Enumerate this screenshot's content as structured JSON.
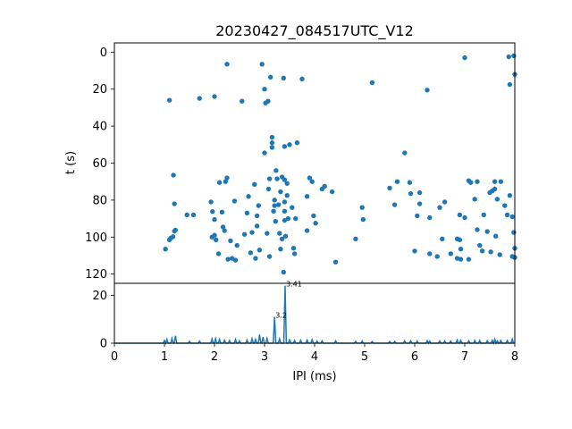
{
  "colors": {
    "series": "#1f77b4",
    "axes": "#000000",
    "background": "#ffffff"
  },
  "chart_data": [
    {
      "type": "scatter",
      "title": "20230427_084517UTC_V12",
      "xlabel": "",
      "ylabel": "t (s)",
      "xlim": [
        0,
        8
      ],
      "ylim": [
        125,
        -5
      ],
      "y_inverted": true,
      "yticks": [
        0,
        20,
        40,
        60,
        80,
        100,
        120
      ],
      "x_shared_with_next": true,
      "points": [
        [
          1.02,
          106.5
        ],
        [
          1.1,
          101.5
        ],
        [
          1.13,
          100.5
        ],
        [
          1.17,
          99.8
        ],
        [
          1.2,
          96.8
        ],
        [
          1.22,
          96.2
        ],
        [
          1.1,
          26
        ],
        [
          1.18,
          66.5
        ],
        [
          1.2,
          82
        ],
        [
          1.45,
          88
        ],
        [
          1.58,
          88
        ],
        [
          1.7,
          25
        ],
        [
          2.0,
          24
        ],
        [
          2.25,
          6.5
        ],
        [
          1.93,
          81
        ],
        [
          1.96,
          86.2
        ],
        [
          1.95,
          100
        ],
        [
          2.0,
          99
        ],
        [
          2.03,
          101.5
        ],
        [
          2.0,
          90.5
        ],
        [
          2.1,
          70.5
        ],
        [
          2.15,
          86.5
        ],
        [
          2.17,
          94.5
        ],
        [
          2.2,
          96.5
        ],
        [
          2.22,
          70
        ],
        [
          2.25,
          68
        ],
        [
          2.27,
          112
        ],
        [
          2.32,
          102
        ],
        [
          2.35,
          111.5
        ],
        [
          2.4,
          80.5
        ],
        [
          2.42,
          112.5
        ],
        [
          2.45,
          104.5
        ],
        [
          2.08,
          109
        ],
        [
          2.55,
          26.5
        ],
        [
          2.6,
          98.5
        ],
        [
          2.65,
          87
        ],
        [
          2.68,
          78
        ],
        [
          2.72,
          108.5
        ],
        [
          2.75,
          97.5
        ],
        [
          2.82,
          111.5
        ],
        [
          2.85,
          94
        ],
        [
          2.8,
          71.5
        ],
        [
          2.85,
          88.5
        ],
        [
          2.88,
          83
        ],
        [
          2.9,
          107
        ],
        [
          2.95,
          6.5
        ],
        [
          3.0,
          20
        ],
        [
          3.02,
          27.5
        ],
        [
          3.07,
          26.5
        ],
        [
          3.0,
          54.5
        ],
        [
          3.05,
          98
        ],
        [
          3.08,
          74
        ],
        [
          3.1,
          68.5
        ],
        [
          3.1,
          110.5
        ],
        [
          3.12,
          13.5
        ],
        [
          3.15,
          46
        ],
        [
          3.15,
          49
        ],
        [
          3.15,
          51.5
        ],
        [
          3.18,
          86
        ],
        [
          3.2,
          80
        ],
        [
          3.2,
          83
        ],
        [
          3.22,
          91.5
        ],
        [
          3.23,
          64
        ],
        [
          3.25,
          68.5
        ],
        [
          3.28,
          82.5
        ],
        [
          3.3,
          98
        ],
        [
          3.32,
          75.5
        ],
        [
          3.32,
          106.5
        ],
        [
          3.35,
          101
        ],
        [
          3.35,
          67.5
        ],
        [
          3.38,
          14
        ],
        [
          3.38,
          119
        ],
        [
          3.4,
          51
        ],
        [
          3.4,
          69
        ],
        [
          3.4,
          81
        ],
        [
          3.4,
          86
        ],
        [
          3.4,
          91
        ],
        [
          3.42,
          99.5
        ],
        [
          3.45,
          71
        ],
        [
          3.45,
          77.5
        ],
        [
          3.47,
          90
        ],
        [
          3.5,
          50
        ],
        [
          3.55,
          84
        ],
        [
          3.58,
          106
        ],
        [
          3.6,
          109
        ],
        [
          3.62,
          90
        ],
        [
          3.65,
          49
        ],
        [
          3.75,
          14.5
        ],
        [
          3.85,
          78
        ],
        [
          3.85,
          96.5
        ],
        [
          3.9,
          68
        ],
        [
          3.95,
          70
        ],
        [
          3.98,
          88.5
        ],
        [
          4.02,
          92.5
        ],
        [
          4.15,
          74
        ],
        [
          4.2,
          72.5
        ],
        [
          4.35,
          75.5
        ],
        [
          4.42,
          113.5
        ],
        [
          4.82,
          101
        ],
        [
          4.95,
          84
        ],
        [
          4.97,
          90.5
        ],
        [
          5.15,
          16.5
        ],
        [
          5.5,
          73.5
        ],
        [
          5.6,
          82.5
        ],
        [
          5.65,
          70
        ],
        [
          5.8,
          54.5
        ],
        [
          5.9,
          70.5
        ],
        [
          5.92,
          76.5
        ],
        [
          6.0,
          107.5
        ],
        [
          6.05,
          88.5
        ],
        [
          6.1,
          82
        ],
        [
          6.1,
          76
        ],
        [
          6.25,
          20.5
        ],
        [
          6.3,
          89.5
        ],
        [
          6.3,
          109
        ],
        [
          6.45,
          110.5
        ],
        [
          6.5,
          84
        ],
        [
          6.55,
          101
        ],
        [
          6.6,
          81
        ],
        [
          6.72,
          109
        ],
        [
          6.85,
          101
        ],
        [
          6.85,
          111.5
        ],
        [
          6.9,
          101.5
        ],
        [
          6.9,
          88
        ],
        [
          6.92,
          106.5
        ],
        [
          6.92,
          112
        ],
        [
          7.0,
          3
        ],
        [
          7.0,
          89.5
        ],
        [
          7.08,
          69.5
        ],
        [
          7.08,
          112
        ],
        [
          7.12,
          70.5
        ],
        [
          7.2,
          79.5
        ],
        [
          7.25,
          96
        ],
        [
          7.25,
          70
        ],
        [
          7.3,
          104.5
        ],
        [
          7.35,
          107.5
        ],
        [
          7.38,
          88
        ],
        [
          7.45,
          97
        ],
        [
          7.5,
          76
        ],
        [
          7.52,
          108
        ],
        [
          7.55,
          75
        ],
        [
          7.6,
          74
        ],
        [
          7.6,
          70
        ],
        [
          7.62,
          99.5
        ],
        [
          7.65,
          79.5
        ],
        [
          7.7,
          109.5
        ],
        [
          7.72,
          70
        ],
        [
          7.8,
          83
        ],
        [
          7.85,
          88
        ],
        [
          7.88,
          2.5
        ],
        [
          7.9,
          17.5
        ],
        [
          7.9,
          77.5
        ],
        [
          7.95,
          89
        ],
        [
          7.95,
          110.5
        ],
        [
          7.98,
          2
        ],
        [
          7.98,
          97.5
        ],
        [
          8.0,
          12
        ],
        [
          8.0,
          106
        ],
        [
          8.0,
          111
        ]
      ]
    },
    {
      "type": "line",
      "xlabel": "IPI (ms)",
      "ylabel": "",
      "xlim": [
        0,
        8
      ],
      "ylim": [
        0,
        25
      ],
      "xticks": [
        0,
        1,
        2,
        3,
        4,
        5,
        6,
        7,
        8
      ],
      "yticks": [
        0,
        20
      ],
      "peak_annotations": [
        {
          "x": 3.41,
          "y": 24,
          "label": "3.41"
        },
        {
          "x": 3.2,
          "y": 11,
          "label": "3.2"
        }
      ],
      "series_spikes": [
        [
          1.0,
          1.1
        ],
        [
          1.05,
          1.6
        ],
        [
          1.15,
          2.0
        ],
        [
          1.22,
          3.1
        ],
        [
          1.5,
          0.8
        ],
        [
          1.7,
          0.9
        ],
        [
          1.95,
          1.8
        ],
        [
          2.02,
          1.9
        ],
        [
          2.1,
          1.6
        ],
        [
          2.2,
          1.2
        ],
        [
          2.3,
          1.1
        ],
        [
          2.42,
          1.6
        ],
        [
          2.5,
          1.0
        ],
        [
          2.65,
          1.3
        ],
        [
          2.75,
          1.9
        ],
        [
          2.82,
          1.6
        ],
        [
          2.9,
          3.6
        ],
        [
          2.97,
          2.6
        ],
        [
          3.05,
          2.0
        ],
        [
          3.2,
          11.0
        ],
        [
          3.3,
          1.8
        ],
        [
          3.41,
          24.0
        ],
        [
          3.5,
          1.4
        ],
        [
          3.6,
          1.1
        ],
        [
          3.72,
          1.2
        ],
        [
          3.85,
          1.3
        ],
        [
          3.95,
          1.5
        ],
        [
          4.05,
          0.9
        ],
        [
          4.15,
          1.0
        ],
        [
          4.42,
          1.0
        ],
        [
          4.82,
          0.8
        ],
        [
          4.95,
          0.9
        ],
        [
          5.15,
          0.7
        ],
        [
          5.5,
          0.7
        ],
        [
          5.6,
          0.7
        ],
        [
          5.8,
          1.0
        ],
        [
          5.92,
          1.0
        ],
        [
          6.05,
          0.9
        ],
        [
          6.25,
          1.1
        ],
        [
          6.3,
          0.9
        ],
        [
          6.5,
          0.9
        ],
        [
          6.6,
          0.9
        ],
        [
          6.72,
          0.9
        ],
        [
          6.85,
          1.3
        ],
        [
          6.92,
          1.2
        ],
        [
          7.08,
          1.0
        ],
        [
          7.2,
          1.1
        ],
        [
          7.3,
          1.1
        ],
        [
          7.45,
          1.0
        ],
        [
          7.55,
          1.2
        ],
        [
          7.6,
          1.6
        ],
        [
          7.65,
          1.0
        ],
        [
          7.72,
          1.1
        ],
        [
          7.85,
          1.1
        ],
        [
          7.95,
          1.7
        ]
      ]
    }
  ]
}
